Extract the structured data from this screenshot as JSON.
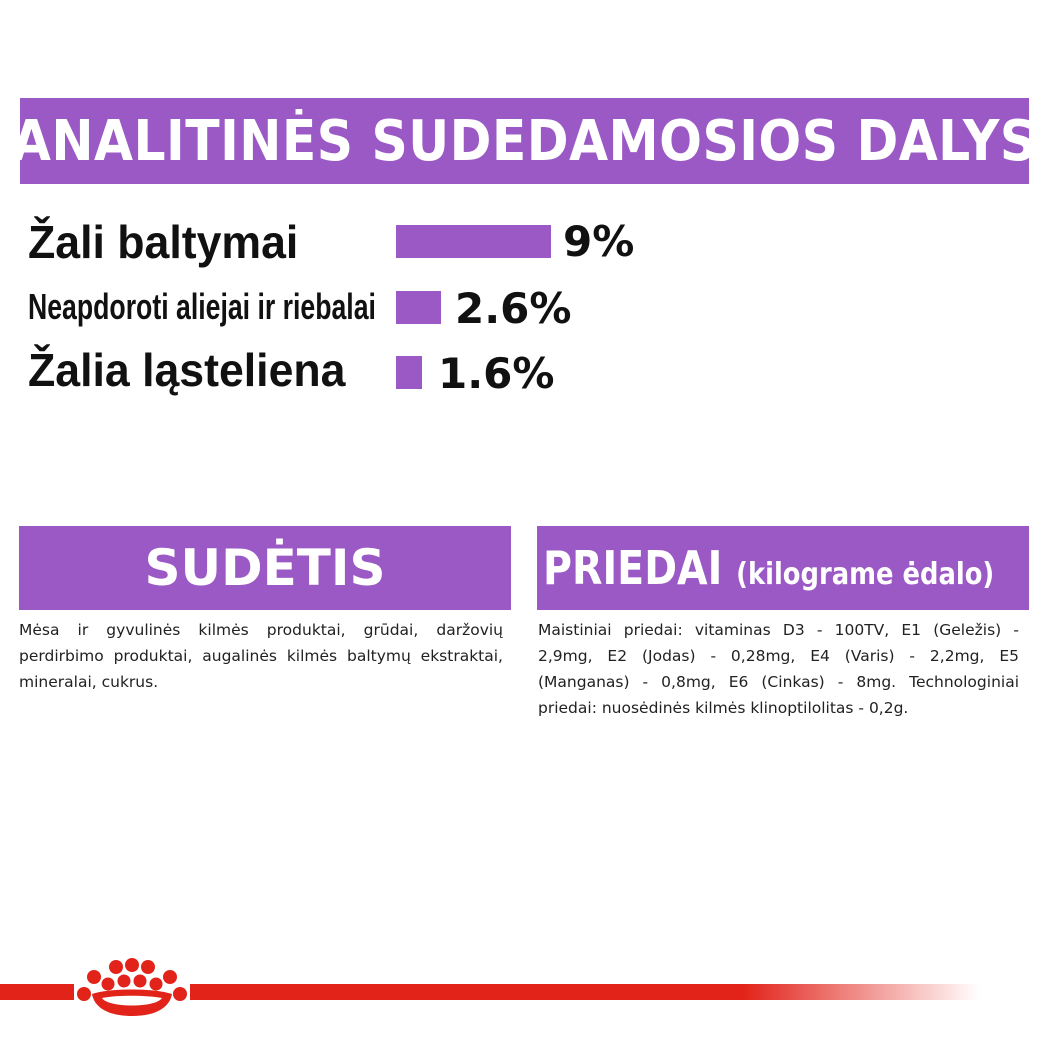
{
  "header": {
    "title": "ANALITINĖS SUDEDAMOSIOS DALYS"
  },
  "analytics": [
    {
      "label": "Žali baltymai",
      "value": "9%"
    },
    {
      "label": "Neapdoroti aliejai ir riebalai",
      "value": "2.6%"
    },
    {
      "label": "Žalia ląsteliena",
      "value": "1.6%"
    }
  ],
  "composition": {
    "title": "SUDĖTIS",
    "text": "Mėsa ir gyvulinės kilmės produktai, grūdai, daržovių perdirbimo produktai, augalinės kilmės baltymų ekstraktai, mineralai, cukrus."
  },
  "additives": {
    "title": "PRIEDAI",
    "subtitle": "(kilograme ėdalo)",
    "text": "Maistiniai priedai: vitaminas D3 - 100TV, E1 (Geležis) - 2,9mg, E2 (Jodas) - 0,28mg, E4 (Varis) - 2,2mg, E5 (Manganas) - 0,8mg, E6 (Cinkas) - 8mg. Technologiniai priedai: nuosėdinės kilmės klinoptilolitas - 0,2g."
  },
  "colors": {
    "accent": "#9b59c6",
    "brand_red": "#e2231a"
  },
  "icons": {
    "logo": "royal-canin-crown-icon"
  }
}
